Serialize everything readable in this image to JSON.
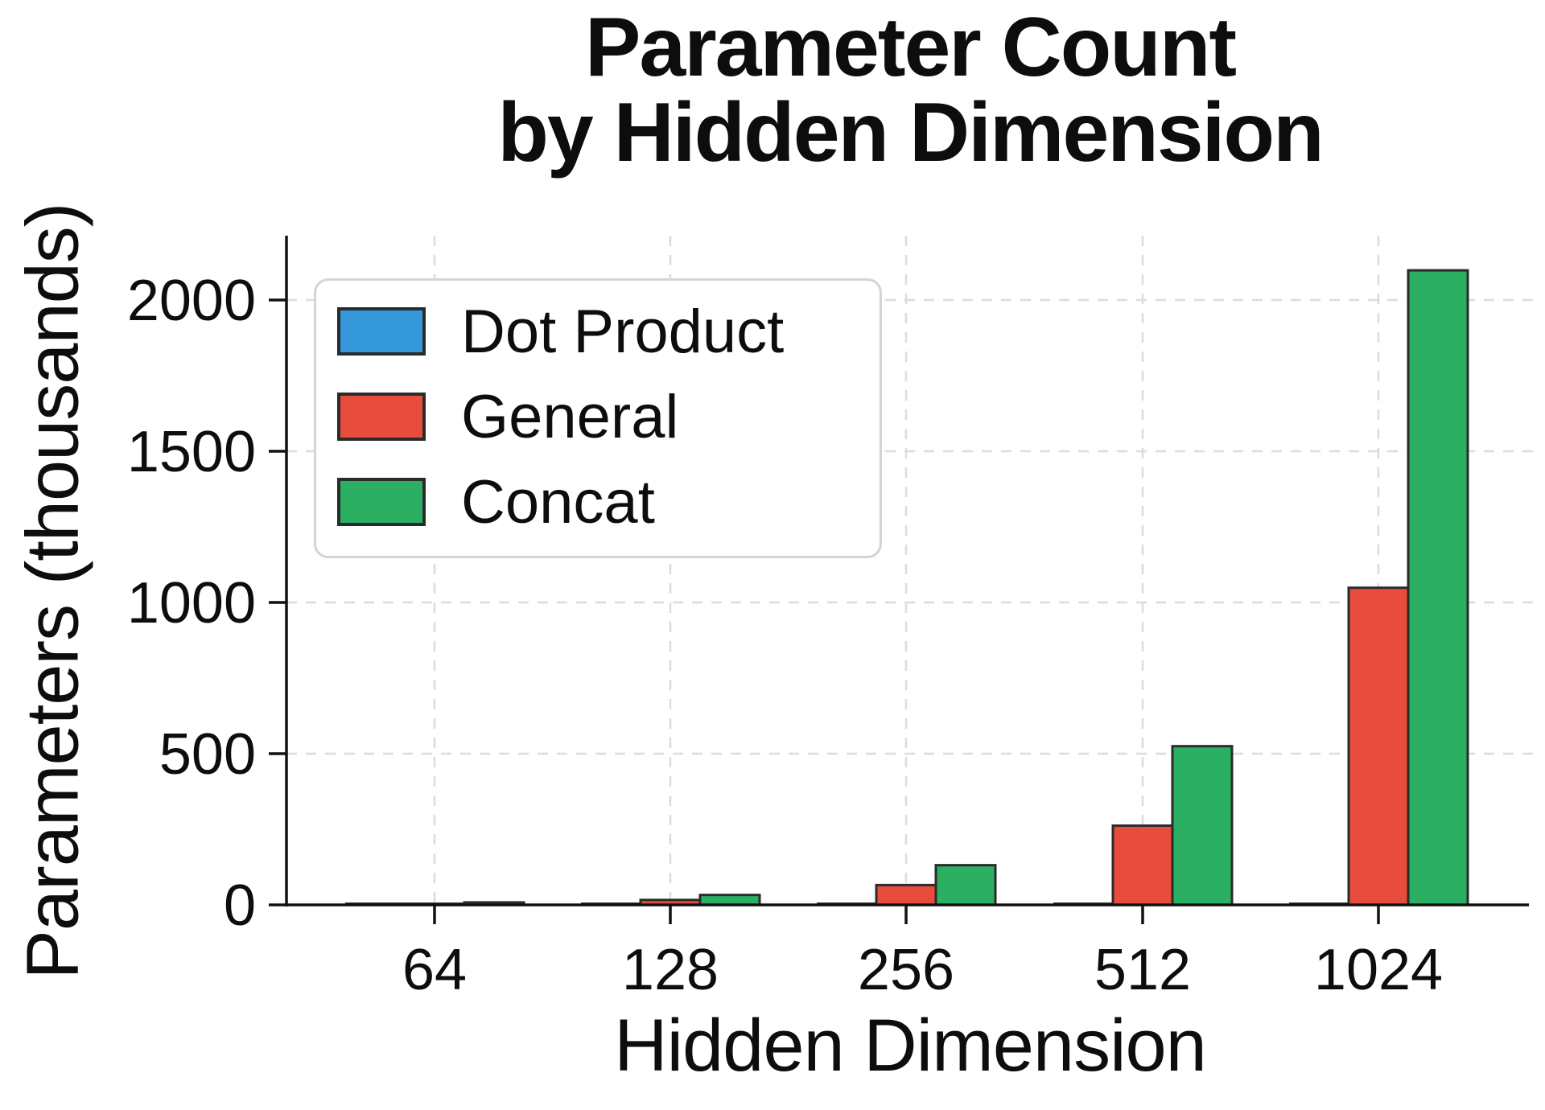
{
  "title_line1": "Parameter Count",
  "title_line2": "by Hidden Dimension",
  "chart_data": {
    "type": "bar",
    "title": "Parameter Count by Hidden Dimension",
    "xlabel": "Hidden Dimension",
    "ylabel": "Parameters (thousands)",
    "categories": [
      "64",
      "128",
      "256",
      "512",
      "1024"
    ],
    "series": [
      {
        "name": "Dot Product",
        "color": "#3498db",
        "values": [
          0,
          0,
          0,
          0,
          0
        ]
      },
      {
        "name": "General",
        "color": "#e74c3c",
        "values": [
          4.1,
          16.4,
          65.5,
          262.1,
          1048.6
        ]
      },
      {
        "name": "Concat",
        "color": "#2baf63",
        "values": [
          8.3,
          32.9,
          131.3,
          524.8,
          2098.2
        ]
      }
    ],
    "ylim": [
      0,
      2200
    ],
    "yticks": [
      0,
      500,
      1000,
      1500,
      2000
    ],
    "grid": "both, dashed light gray",
    "legend_position": "upper left",
    "bar_edge_color": "#2b2b2b"
  }
}
